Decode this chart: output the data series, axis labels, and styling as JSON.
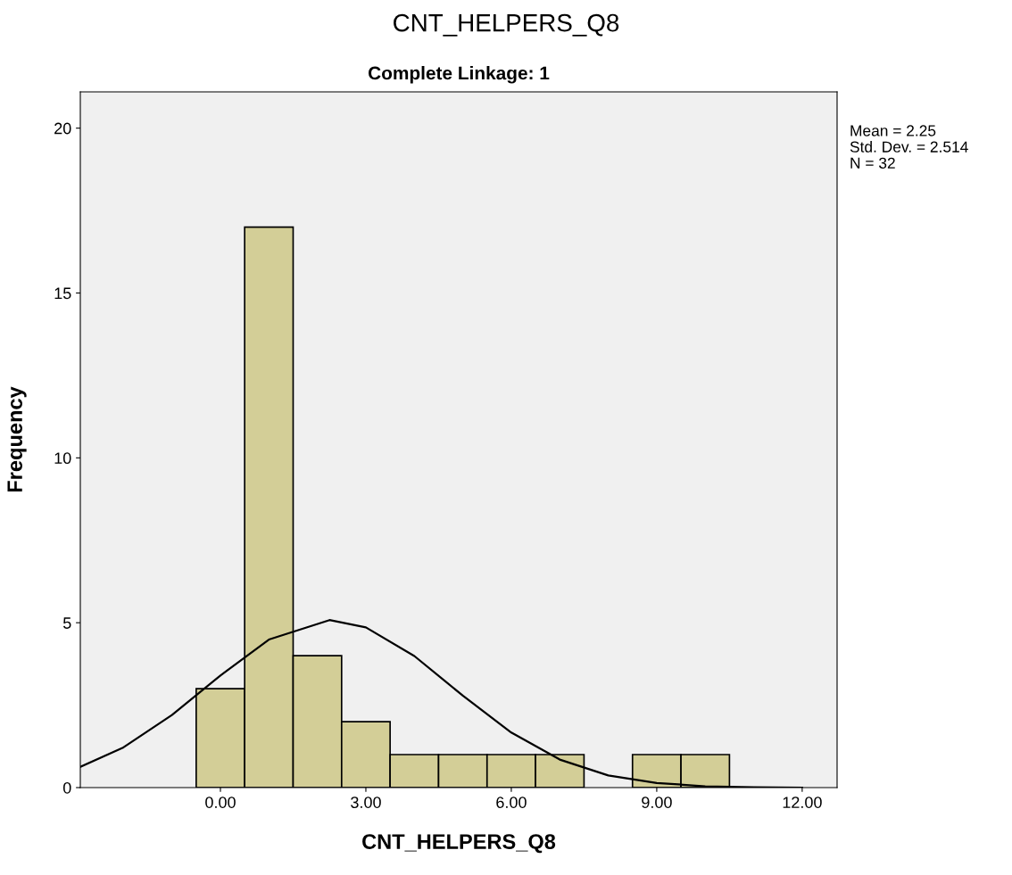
{
  "chart_data": {
    "type": "histogram",
    "title": "CNT_HELPERS_Q8",
    "subtitle": "Complete Linkage: 1",
    "xlabel": "CNT_HELPERS_Q8",
    "ylabel": "Frequency",
    "bins": [
      -0.5,
      0.5,
      1.5,
      2.5,
      3.5,
      4.5,
      5.5,
      6.5,
      7.5,
      8.5,
      9.5,
      10.5
    ],
    "values": [
      3,
      17,
      4,
      2,
      1,
      1,
      1,
      1,
      0,
      1,
      1
    ],
    "color": "#d3ce97",
    "series": [
      {
        "type": "line",
        "color": "#000000",
        "x": [
          -2.89,
          -2,
          -1,
          0,
          1,
          2.25,
          3,
          4,
          5,
          6,
          7,
          8,
          9,
          10,
          11,
          12
        ],
        "values": [
          0.63,
          1.22,
          2.2,
          3.4,
          4.49,
          5.08,
          4.86,
          3.99,
          2.79,
          1.67,
          0.85,
          0.37,
          0.14,
          0.04,
          0.01,
          0
        ]
      }
    ],
    "xlim": [
      -2.89,
      12.72
    ],
    "ylim": [
      0,
      21.1
    ],
    "xticks": [
      {
        "value": 0,
        "label": "0.00"
      },
      {
        "value": 3,
        "label": "3.00"
      },
      {
        "value": 6,
        "label": "6.00"
      },
      {
        "value": 9,
        "label": "9.00"
      },
      {
        "value": 12,
        "label": "12.00"
      }
    ],
    "yticks": [
      0,
      5,
      10,
      15,
      20
    ],
    "annotations": [
      "Mean = 2.25",
      "Std. Dev. = 2.514",
      "N = 32"
    ],
    "grid": false,
    "legend": false
  }
}
